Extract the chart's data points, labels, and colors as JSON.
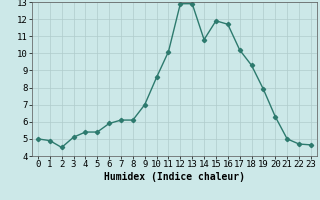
{
  "x": [
    0,
    1,
    2,
    3,
    4,
    5,
    6,
    7,
    8,
    9,
    10,
    11,
    12,
    13,
    14,
    15,
    16,
    17,
    18,
    19,
    20,
    21,
    22,
    23
  ],
  "y": [
    5.0,
    4.9,
    4.5,
    5.1,
    5.4,
    5.4,
    5.9,
    6.1,
    6.1,
    7.0,
    8.6,
    10.1,
    12.9,
    12.9,
    10.8,
    11.9,
    11.7,
    10.2,
    9.3,
    7.9,
    6.3,
    5.0,
    4.7,
    4.65
  ],
  "line_color": "#2d7a6e",
  "marker": "D",
  "marker_size": 2.2,
  "bg_color": "#cce8e8",
  "grid_color": "#b0cccc",
  "xlabel": "Humidex (Indice chaleur)",
  "xlim": [
    -0.5,
    23.5
  ],
  "ylim": [
    4,
    13
  ],
  "yticks": [
    4,
    5,
    6,
    7,
    8,
    9,
    10,
    11,
    12,
    13
  ],
  "xticks": [
    0,
    1,
    2,
    3,
    4,
    5,
    6,
    7,
    8,
    9,
    10,
    11,
    12,
    13,
    14,
    15,
    16,
    17,
    18,
    19,
    20,
    21,
    22,
    23
  ],
  "xlabel_fontsize": 7,
  "tick_fontsize": 6.5,
  "linewidth": 1.0
}
